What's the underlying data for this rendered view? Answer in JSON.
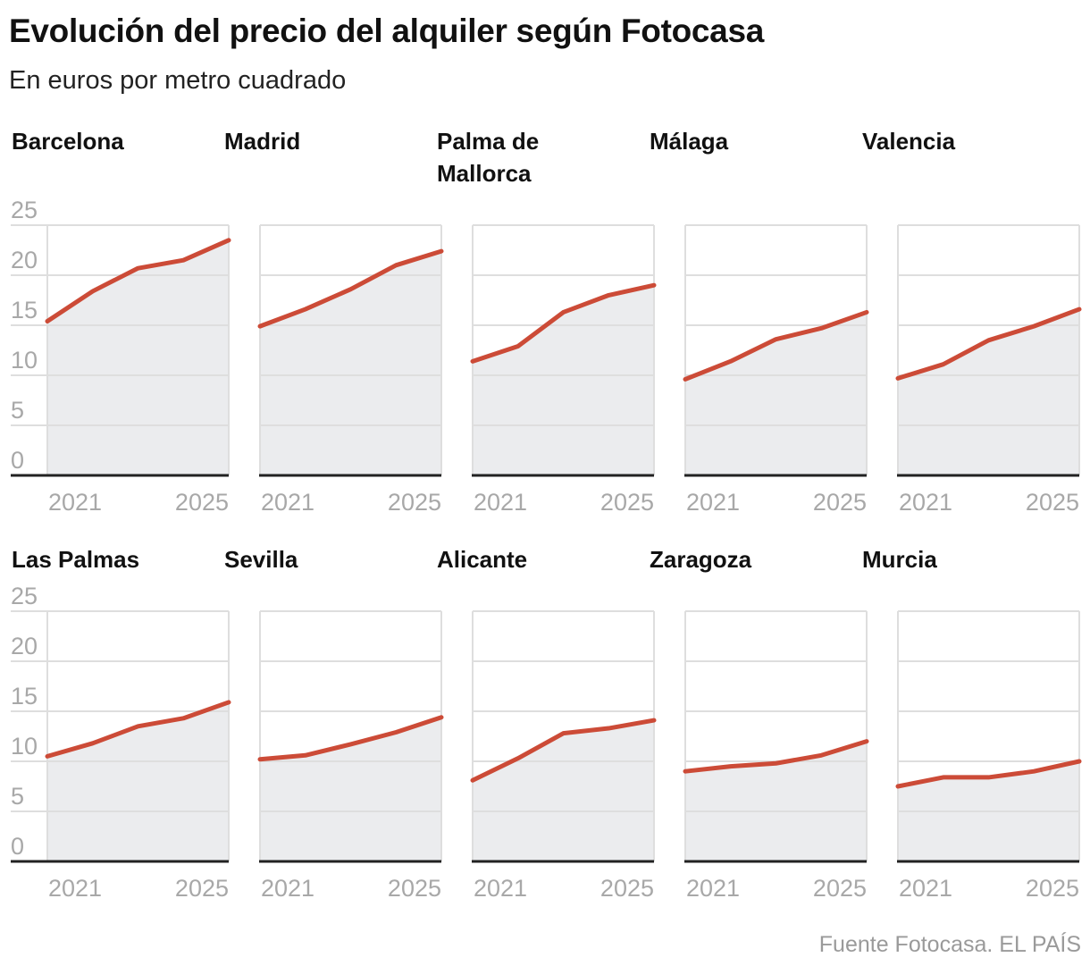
{
  "title": "Evolución del precio del alquiler según Fotocasa",
  "subtitle": "En euros por metro cuadrado",
  "source": "Fuente Fotocasa. EL PAÍS",
  "chart_data": {
    "type": "area",
    "layout": "small-multiples",
    "x": [
      2021,
      2022,
      2023,
      2024,
      2025
    ],
    "x_tick_labels": [
      "2021",
      "2025"
    ],
    "y_ticks": [
      0,
      5,
      10,
      15,
      20,
      25
    ],
    "ylim": [
      0,
      25
    ],
    "grid": true,
    "colors": {
      "line": "#cc4b37",
      "area": "#ebecee",
      "grid": "#dedede",
      "axis": "#222222"
    },
    "panels": [
      {
        "name": "Barcelona",
        "values": [
          15.4,
          18.4,
          20.7,
          21.5,
          23.5
        ]
      },
      {
        "name": "Madrid",
        "values": [
          14.9,
          16.6,
          18.6,
          21.0,
          22.4
        ]
      },
      {
        "name": "Palma de Mallorca",
        "values": [
          11.4,
          12.9,
          16.3,
          18.0,
          19.0
        ]
      },
      {
        "name": "Málaga",
        "values": [
          9.6,
          11.4,
          13.6,
          14.7,
          16.3
        ]
      },
      {
        "name": "Valencia",
        "values": [
          9.7,
          11.1,
          13.5,
          14.9,
          16.6
        ]
      },
      {
        "name": "Las Palmas",
        "values": [
          10.5,
          11.8,
          13.5,
          14.3,
          15.9
        ]
      },
      {
        "name": "Sevilla",
        "values": [
          10.2,
          10.6,
          11.7,
          12.9,
          14.4
        ]
      },
      {
        "name": "Alicante",
        "values": [
          8.1,
          10.3,
          12.8,
          13.3,
          14.1
        ]
      },
      {
        "name": "Zaragoza",
        "values": [
          9.0,
          9.5,
          9.8,
          10.6,
          12.0
        ]
      },
      {
        "name": "Murcia",
        "values": [
          7.5,
          8.4,
          8.4,
          9.0,
          10.0
        ]
      }
    ]
  }
}
